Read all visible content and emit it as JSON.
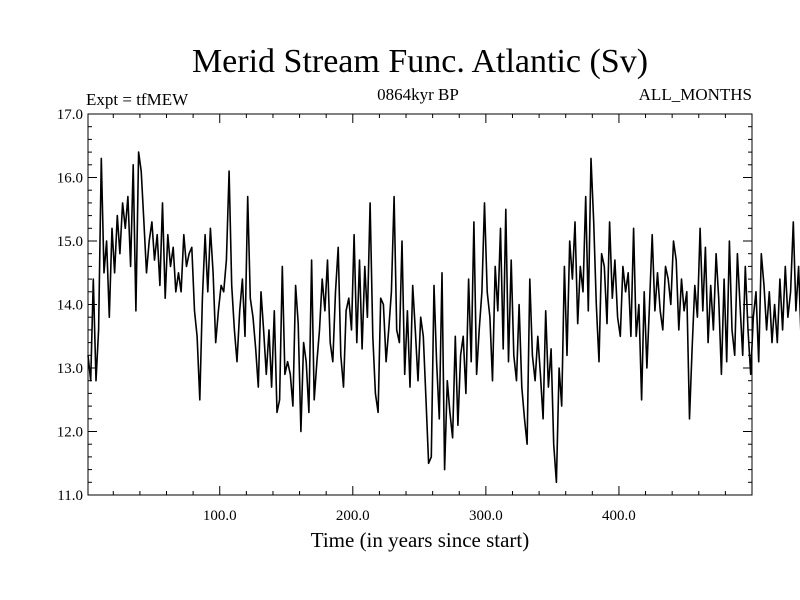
{
  "chart_data": {
    "type": "line",
    "title": "Merid Stream Func. Atlantic (Sv)",
    "subtitle_left": "Expt = tfMEW",
    "subtitle_center": "0864kyr BP",
    "subtitle_right": "ALL_MONTHS",
    "xlabel": "Time (in years since start)",
    "ylabel": "",
    "xlim": [
      1,
      500
    ],
    "ylim": [
      11.0,
      17.0
    ],
    "x_ticks": [
      100,
      200,
      300,
      400
    ],
    "x_tick_labels": [
      "100.0",
      "200.0",
      "300.0",
      "400.0"
    ],
    "y_ticks": [
      11,
      12,
      13,
      14,
      15,
      16,
      17
    ],
    "y_tick_labels": [
      "11.0",
      "12.0",
      "13.0",
      "14.0",
      "15.0",
      "16.0",
      "17.0"
    ],
    "grid": false,
    "series": [
      {
        "name": "Merid Stream Func. Atlantic",
        "x_start": 1,
        "x_step": 2,
        "values": [
          13.2,
          12.8,
          14.4,
          12.8,
          13.6,
          16.3,
          14.5,
          15.0,
          13.8,
          15.2,
          14.5,
          15.4,
          14.8,
          15.6,
          15.2,
          15.7,
          14.6,
          16.2,
          13.9,
          16.4,
          16.1,
          15.3,
          14.5,
          15.0,
          15.3,
          14.7,
          15.1,
          14.3,
          15.6,
          14.1,
          15.1,
          14.6,
          14.9,
          14.2,
          14.5,
          14.2,
          15.1,
          14.6,
          14.8,
          14.9,
          13.9,
          13.5,
          12.5,
          14.1,
          15.1,
          14.2,
          15.2,
          14.5,
          13.4,
          13.9,
          14.3,
          14.2,
          14.7,
          16.1,
          14.3,
          13.6,
          13.1,
          13.9,
          14.4,
          13.5,
          15.7,
          14.1,
          13.8,
          13.3,
          12.7,
          14.2,
          13.6,
          12.9,
          13.6,
          12.7,
          13.9,
          12.3,
          12.5,
          14.6,
          12.9,
          13.1,
          12.9,
          12.4,
          14.3,
          13.7,
          12.0,
          13.4,
          13.1,
          12.3,
          14.7,
          12.5,
          13.1,
          13.6,
          14.4,
          13.9,
          14.7,
          13.4,
          13.1,
          14.2,
          14.9,
          13.2,
          12.7,
          13.9,
          14.1,
          13.6,
          15.1,
          13.4,
          14.7,
          13.3,
          14.6,
          13.8,
          15.6,
          13.5,
          12.6,
          12.3,
          14.1,
          14.0,
          13.1,
          13.6,
          14.2,
          15.7,
          13.6,
          13.4,
          15.0,
          12.9,
          13.9,
          12.7,
          14.3,
          13.6,
          12.8,
          13.8,
          13.5,
          12.5,
          11.5,
          11.6,
          14.3,
          13.1,
          12.2,
          14.5,
          11.4,
          12.8,
          12.3,
          11.9,
          13.5,
          12.1,
          13.2,
          13.5,
          12.6,
          14.4,
          13.1,
          15.3,
          12.9,
          13.6,
          14.2,
          15.6,
          14.2,
          13.8,
          12.8,
          14.6,
          13.9,
          15.2,
          13.3,
          15.5,
          13.1,
          14.7,
          13.2,
          12.8,
          14.0,
          12.7,
          12.2,
          11.8,
          14.4,
          13.2,
          12.8,
          13.5,
          12.9,
          12.2,
          13.9,
          12.7,
          13.3,
          11.8,
          11.2,
          13.0,
          12.4,
          14.6,
          13.2,
          15.0,
          14.4,
          15.3,
          13.7,
          14.6,
          14.2,
          15.7,
          13.9,
          16.3,
          15.3,
          14.0,
          13.1,
          14.8,
          14.6,
          13.7,
          15.3,
          14.1,
          14.7,
          13.8,
          13.5,
          14.6,
          14.2,
          14.5,
          13.5,
          15.2,
          13.5,
          14.0,
          12.5,
          14.2,
          13.0,
          14.0,
          15.1,
          13.9,
          14.5,
          13.9,
          13.6,
          14.6,
          14.4,
          14.0,
          15.0,
          14.7,
          13.6,
          14.4,
          13.9,
          14.2,
          12.2,
          13.3,
          14.3,
          13.8,
          15.2,
          13.9,
          14.9,
          13.4,
          14.3,
          13.6,
          14.8,
          14.1,
          12.9,
          14.4,
          13.1,
          15.0,
          13.6,
          13.2,
          14.8,
          14.0,
          13.2,
          14.6,
          13.6,
          12.9,
          13.8,
          14.2,
          13.1,
          14.8,
          14.3,
          13.6,
          14.2,
          13.4,
          14.0,
          13.4,
          14.4,
          13.6,
          14.6,
          13.8,
          14.2,
          15.3,
          13.9,
          14.6,
          13.4,
          14.2,
          13.8,
          14.9,
          14.2,
          12.5,
          13.6,
          15.0,
          13.4,
          13.0,
          12.5,
          13.7,
          14.1,
          13.3,
          12.6,
          12.7,
          13.9,
          14.1,
          14.0,
          13.2,
          13.6,
          15.2,
          14.0,
          14.4,
          16.1,
          14.4,
          13.3,
          13.6
        ]
      }
    ]
  }
}
